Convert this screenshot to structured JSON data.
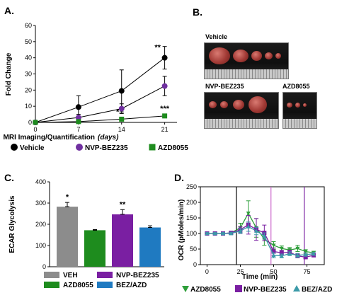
{
  "panel_letters": {
    "a": "A.",
    "b": "B.",
    "c": "C.",
    "d": "D."
  },
  "colors": {
    "vehicle": "#000000",
    "nvp": "#7030a0",
    "azd": "#1e8c1e",
    "veh_bar": "#8c8c8c",
    "azd_bar": "#1e8c1e",
    "nvp_bar": "#7a1fa2",
    "bez_bar": "#1f7ac1",
    "ocr_azd": "#2e9e3a",
    "ocr_nvp": "#7a1fa2",
    "ocr_bez": "#3b9aa8"
  },
  "photos": {
    "vehicle_label": "Vehicle",
    "nvp_label": "NVP-BEZ235",
    "azd_label": "AZD8055"
  },
  "chart_data": [
    {
      "type": "line",
      "panel": "A",
      "xlabel": "MRI Imaging/Quantification",
      "xlabel_unit": "(days)",
      "ylabel": "Fold Change",
      "x": [
        0,
        7,
        14,
        21
      ],
      "xlim": [
        0,
        23
      ],
      "ylim": [
        0,
        60
      ],
      "yticks": [
        0,
        10,
        20,
        30,
        40,
        50,
        60
      ],
      "xticks": [
        0,
        7,
        14,
        21
      ],
      "series": [
        {
          "name": "Vehicle",
          "marker": "circle",
          "color": "#000000",
          "values": [
            0,
            9.5,
            19.5,
            40
          ],
          "err": [
            0,
            7,
            13,
            7
          ]
        },
        {
          "name": "NVP-BEZ235",
          "marker": "circle",
          "color": "#7030a0",
          "values": [
            0,
            3,
            8.5,
            22.5
          ],
          "err": [
            0,
            2,
            3,
            6
          ]
        },
        {
          "name": "AZD8055",
          "marker": "square",
          "color": "#1e8c1e",
          "values": [
            0,
            0.5,
            2,
            4
          ],
          "err": [
            0,
            0.5,
            1,
            1
          ]
        }
      ],
      "annotations": [
        {
          "text": "**",
          "x": 21,
          "y": 45
        },
        {
          "text": "*",
          "x": 14.5,
          "y": 5
        },
        {
          "text": "***",
          "x": 21,
          "y": 7
        }
      ],
      "legend": [
        "Vehicle",
        "NVP-BEZ235",
        "AZD8055"
      ]
    },
    {
      "type": "bar",
      "panel": "C",
      "ylabel": "ECAR Glycolysis",
      "ylim": [
        0,
        400
      ],
      "yticks": [
        0,
        100,
        200,
        300,
        400
      ],
      "categories": [
        "VEH",
        "AZD8055",
        "NVP-BEZ235",
        "BEZ/AZD"
      ],
      "values": [
        283,
        172,
        247,
        185
      ],
      "err": [
        20,
        3,
        22,
        8
      ],
      "colors": [
        "#8c8c8c",
        "#1e8c1e",
        "#7a1fa2",
        "#1f7ac1"
      ],
      "annotations": [
        {
          "text": "*",
          "bar": 0
        },
        {
          "text": "**",
          "bar": 2
        }
      ],
      "legend": [
        "VEH",
        "NVP-BEZ235",
        "AZD8055",
        "BEZ/AZD"
      ]
    },
    {
      "type": "line",
      "panel": "D",
      "xlabel": "Time (min)",
      "ylabel": "OCR (pMoles/min)",
      "xlim": [
        -5,
        88
      ],
      "ylim": [
        0,
        250
      ],
      "xticks": [
        0,
        25,
        50,
        75
      ],
      "yticks": [
        0,
        50,
        100,
        150,
        200,
        250
      ],
      "vlines": [
        {
          "x": 22,
          "color": "#000000"
        },
        {
          "x": 48,
          "color": "#cc66cc"
        },
        {
          "x": 73,
          "color": "#7a1fa2"
        }
      ],
      "series": [
        {
          "name": "AZD8055",
          "marker": "triangle-down",
          "color": "#2e9e3a",
          "x": [
            0,
            6,
            12,
            18,
            25,
            31,
            37,
            43,
            50,
            56,
            62,
            68,
            74,
            80
          ],
          "values": [
            100,
            100,
            100,
            102,
            118,
            165,
            118,
            82,
            62,
            52,
            47,
            52,
            42,
            38
          ],
          "err": [
            3,
            3,
            3,
            5,
            15,
            40,
            30,
            20,
            12,
            8,
            8,
            10,
            6,
            5
          ]
        },
        {
          "name": "NVP-BEZ235",
          "marker": "square",
          "color": "#7a1fa2",
          "x": [
            0,
            6,
            12,
            18,
            25,
            31,
            37,
            43,
            50,
            56,
            62,
            68,
            74,
            80
          ],
          "values": [
            100,
            100,
            100,
            102,
            112,
            128,
            113,
            102,
            42,
            38,
            40,
            28,
            24,
            30
          ],
          "err": [
            3,
            3,
            3,
            5,
            10,
            30,
            35,
            25,
            12,
            8,
            6,
            6,
            5,
            5
          ]
        },
        {
          "name": "BEZ/AZD",
          "marker": "triangle-up",
          "color": "#3b9aa8",
          "x": [
            0,
            6,
            12,
            18,
            25,
            31,
            37,
            43,
            50,
            56,
            62,
            68,
            74,
            80
          ],
          "values": [
            100,
            100,
            100,
            100,
            108,
            122,
            108,
            92,
            30,
            28,
            35,
            30,
            32,
            35
          ],
          "err": [
            3,
            3,
            3,
            4,
            8,
            15,
            12,
            10,
            8,
            6,
            6,
            6,
            5,
            5
          ]
        }
      ],
      "legend": [
        "AZD8055",
        "NVP-BEZ235",
        "BEZ/AZD"
      ]
    }
  ]
}
